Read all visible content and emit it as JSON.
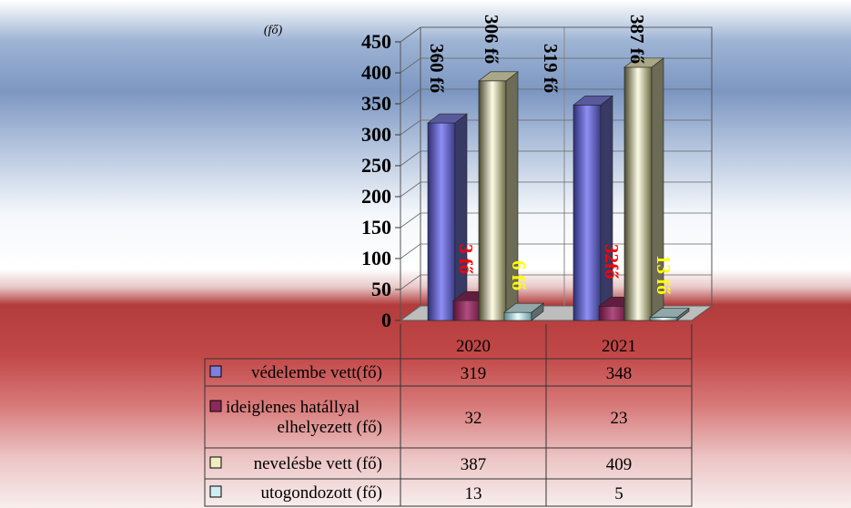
{
  "chart_data": {
    "type": "bar",
    "unit_label": "(fő)",
    "ylim": [
      0,
      450
    ],
    "yticks": [
      "0",
      "50",
      "100",
      "150",
      "200",
      "250",
      "300",
      "350",
      "400",
      "450"
    ],
    "categories": [
      "2020",
      "2021"
    ],
    "series": [
      {
        "name": "védelembe vett(fő)",
        "values": [
          319,
          348
        ],
        "color": "#7f7fe0"
      },
      {
        "name": "ideiglenes hatállyal elhelyezett (fő)",
        "name_lines": [
          "ideiglenes hatállyal",
          "elhelyezett (fő)"
        ],
        "values": [
          32,
          23
        ],
        "color": "#8b2a5a"
      },
      {
        "name": "nevelésbe vett (fő)",
        "values": [
          387,
          409
        ],
        "color": "#f0eec0"
      },
      {
        "name": "utogondozott (fő)",
        "values": [
          13,
          5
        ],
        "color": "#cfeef0"
      }
    ],
    "annotations": [
      {
        "text": "360 fő",
        "color": "#000000"
      },
      {
        "text": "306 fő",
        "color": "#000000"
      },
      {
        "text": "319 fő",
        "color": "#000000"
      },
      {
        "text": "387 fő",
        "color": "#000000"
      },
      {
        "text": "3 fő",
        "color": "#ff0000"
      },
      {
        "text": "6 fő",
        "color": "#ffff00"
      },
      {
        "text": "32fő",
        "color": "#ff0000"
      },
      {
        "text": "13 fő",
        "color": "#ffff00"
      }
    ],
    "grid": true,
    "legend": "data-table"
  }
}
